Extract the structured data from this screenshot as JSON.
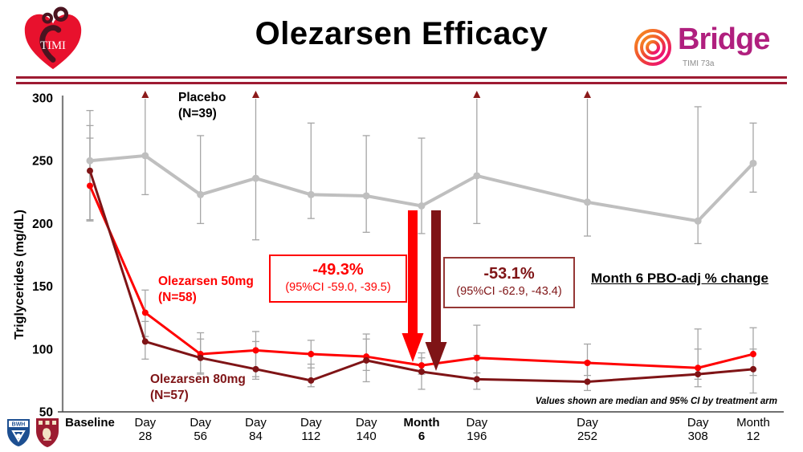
{
  "header": {
    "title": "Olezarsen Efficacy",
    "timi_logo_text": "TIMI",
    "bridge_logo_text": "Bridge",
    "bridge_sub_text": "TIMI 73a"
  },
  "colors": {
    "separator": "#9e1b32",
    "bridge_magenta": "#b01f7e",
    "timi_red": "#e8112d",
    "bwh_blue": "#1d4f91",
    "hms_crimson": "#9c1c31",
    "exceed_arrow": "#8b1a1a"
  },
  "chart_data": {
    "type": "line",
    "ylabel": "Triglycerides (mg/dL)",
    "ylim": [
      50,
      300
    ],
    "yticks": [
      300,
      250,
      200,
      150,
      100,
      50
    ],
    "whisker_color": "#a6a6a6",
    "x_days": [
      0,
      28,
      56,
      84,
      112,
      140,
      168,
      196,
      252,
      308,
      336
    ],
    "x_labels": [
      [
        "Baseline"
      ],
      [
        "Day",
        "28"
      ],
      [
        "Day",
        "56"
      ],
      [
        "Day",
        "84"
      ],
      [
        "Day",
        "112"
      ],
      [
        "Day",
        "140"
      ],
      [
        "Month",
        "6"
      ],
      [
        "Day",
        "196"
      ],
      [
        "Day",
        "252"
      ],
      [
        "Day",
        "308"
      ],
      [
        "Month",
        "12"
      ]
    ],
    "x_labels_bold": [
      true,
      false,
      false,
      false,
      false,
      false,
      true,
      false,
      false,
      false,
      false
    ],
    "series": [
      {
        "key": "placebo",
        "name": "Placebo",
        "n_label": "(N=39)",
        "color": "#bfbfbf",
        "values": [
          250,
          254,
          223,
          236,
          223,
          222,
          214,
          238,
          217,
          202,
          248
        ],
        "ci_lo": [
          203,
          223,
          200,
          187,
          204,
          193,
          192,
          200,
          190,
          184,
          225
        ],
        "ci_hi": [
          290,
          305,
          270,
          305,
          280,
          270,
          268,
          305,
          305,
          293,
          280
        ],
        "ci_exceeds_top": [
          false,
          true,
          false,
          true,
          false,
          false,
          false,
          true,
          true,
          false,
          false
        ]
      },
      {
        "key": "olez50",
        "name": "Olezarsen 50mg",
        "n_label": "(N=58)",
        "color": "#ff0000",
        "values": [
          230,
          129,
          96,
          99,
          96,
          94,
          87,
          93,
          89,
          85,
          96
        ],
        "ci_lo": [
          203,
          110,
          81,
          78,
          85,
          83,
          80,
          81,
          79,
          76,
          79
        ],
        "ci_hi": [
          278,
          147,
          113,
          114,
          107,
          112,
          97,
          119,
          104,
          116,
          117
        ],
        "ci_exceeds_top": [
          false,
          false,
          false,
          false,
          false,
          false,
          false,
          false,
          false,
          false,
          false
        ]
      },
      {
        "key": "olez80",
        "name": "Olezarsen 80mg",
        "n_label": "(N=57)",
        "color": "#7f1416",
        "values": [
          242,
          106,
          93,
          84,
          75,
          91,
          82,
          76,
          74,
          80,
          84
        ],
        "ci_lo": [
          202,
          92,
          80,
          76,
          70,
          74,
          68,
          68,
          67,
          70,
          65
        ],
        "ci_hi": [
          268,
          122,
          108,
          106,
          88,
          108,
          93,
          95,
          90,
          100,
          100
        ],
        "ci_exceeds_top": [
          false,
          false,
          false,
          false,
          false,
          false,
          false,
          false,
          false,
          false,
          false
        ]
      }
    ],
    "footnote": "Values shown are median and 95% CI by treatment arm"
  },
  "annotations": {
    "box50": {
      "pct": "-49.3%",
      "ci": "(95%CI -59.0, -39.5)"
    },
    "box80": {
      "pct": "-53.1%",
      "ci": "(95%CI -62.9, -43.4)"
    },
    "pbo_adj_label": "Month 6 PBO-adj % change"
  },
  "footer": {
    "bwh_text": "BWH"
  }
}
